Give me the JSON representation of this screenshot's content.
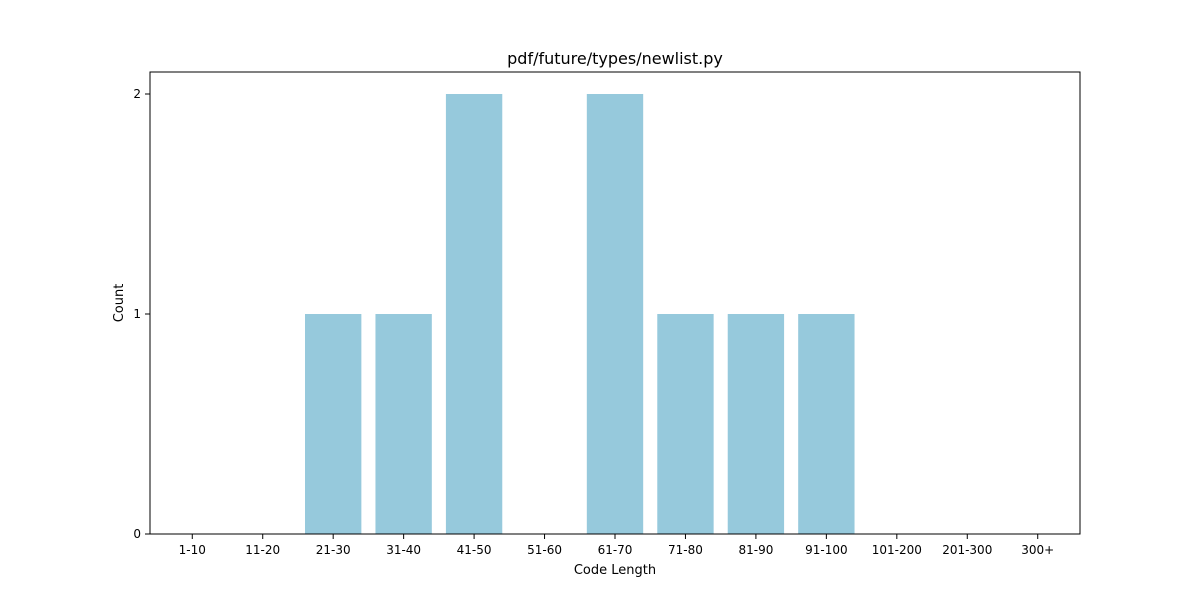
{
  "chart_data": {
    "type": "bar",
    "title": "pdf/future/types/newlist.py",
    "xlabel": "Code Length",
    "ylabel": "Count",
    "categories": [
      "1-10",
      "11-20",
      "21-30",
      "31-40",
      "41-50",
      "51-60",
      "61-70",
      "71-80",
      "81-90",
      "91-100",
      "101-200",
      "201-300",
      "300+"
    ],
    "values": [
      0,
      0,
      1,
      1,
      2,
      0,
      2,
      1,
      1,
      1,
      0,
      0,
      0
    ],
    "ylim": [
      0,
      2.1
    ],
    "yticks": [
      "0",
      "1",
      "2"
    ],
    "bar_color": "#96c9dc",
    "grid": false,
    "legend": "none"
  }
}
